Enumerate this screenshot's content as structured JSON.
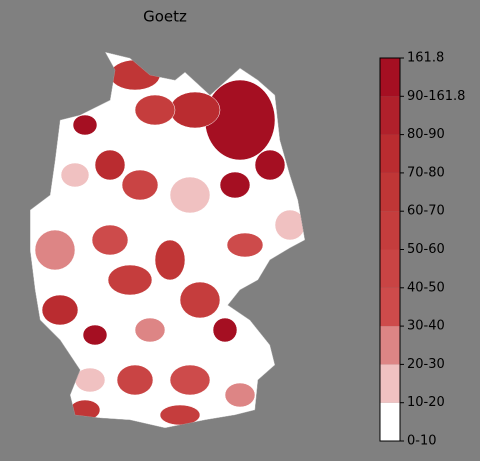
{
  "title": "Goetz",
  "colorbar": {
    "labels": [
      "0-10",
      "10-20",
      "20-30",
      "30-40",
      "40-50",
      "50-60",
      "60-70",
      "70-80",
      "80-90",
      "90-161.8",
      "161.8"
    ],
    "colors": [
      "#ffffff",
      "#f0c1c1",
      "#dd8585",
      "#cd4b4b",
      "#c94444",
      "#c53d3d",
      "#c03636",
      "#ba2c30",
      "#b0202b",
      "#a50f22"
    ]
  }
}
